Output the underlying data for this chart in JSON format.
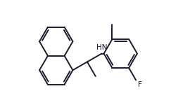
{
  "bg_color": "#ffffff",
  "bond_color": "#1a1a2e",
  "dbo": 0.035,
  "lw": 1.4,
  "font_size": 7.5,
  "fig_width": 2.7,
  "fig_height": 1.5,
  "dpi": 100,
  "R": 0.3,
  "xlim": [
    -0.05,
    2.65
  ],
  "ylim": [
    -0.85,
    1.05
  ]
}
